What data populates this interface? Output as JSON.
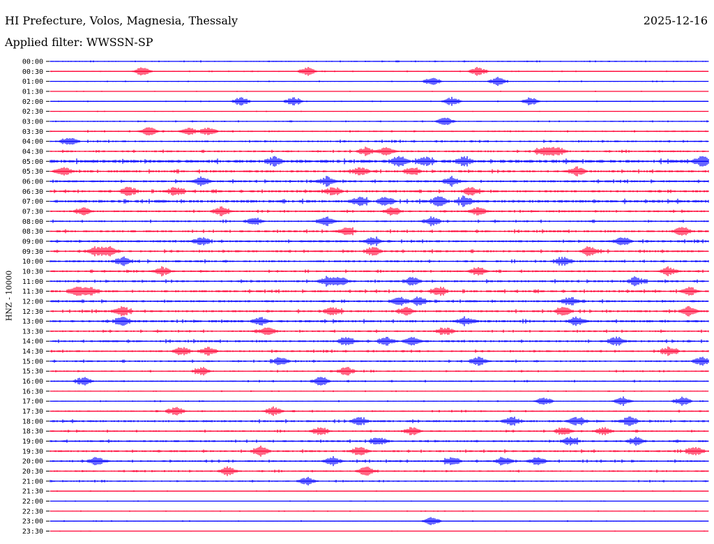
{
  "header": {
    "station": "HI Prefecture, Volos, Magnesia, Thessaly",
    "date": "2025-12-16",
    "filter": "Applied filter: WWSSN-SP"
  },
  "chart_data": {
    "type": "line",
    "ylabel": "HNZ - 10000",
    "trace_start_labels": [
      "00:00",
      "00:30",
      "01:00",
      "01:30",
      "02:00",
      "02:30",
      "03:00",
      "03:30",
      "04:00",
      "04:30",
      "05:00",
      "05:30",
      "06:00",
      "06:30",
      "07:00",
      "07:30",
      "08:00",
      "08:30",
      "09:00",
      "09:30",
      "10:00",
      "10:30",
      "11:00",
      "11:30",
      "12:00",
      "12:30",
      "13:00",
      "13:30",
      "14:00",
      "14:30",
      "15:00",
      "15:30",
      "16:00",
      "16:30",
      "17:00",
      "17:30",
      "18:00",
      "18:30",
      "19:00",
      "19:30",
      "20:00",
      "20:30",
      "21:00",
      "21:30",
      "22:00",
      "22:30",
      "23:00",
      "23:30"
    ],
    "trace_colors": [
      "#0000ff",
      "#ff0033"
    ],
    "grid": false,
    "relative_amplitude": [
      0.6,
      0.5,
      0.5,
      0.4,
      0.5,
      0.4,
      0.6,
      0.8,
      1.0,
      1.0,
      1.8,
      1.3,
      1.2,
      1.2,
      1.6,
      1.0,
      1.0,
      1.2,
      1.2,
      1.2,
      1.2,
      1.0,
      1.2,
      1.2,
      1.2,
      1.2,
      1.3,
      1.0,
      1.2,
      1.0,
      1.0,
      0.8,
      0.8,
      0.5,
      0.6,
      0.8,
      1.2,
      0.9,
      1.1,
      1.1,
      1.0,
      0.9,
      0.8,
      0.4,
      0.4,
      0.4,
      0.5,
      0.3
    ],
    "events": [
      {
        "trace": "00:30",
        "x": [
          0.14,
          0.39,
          0.65
        ]
      },
      {
        "trace": "01:00",
        "x": [
          0.58,
          0.68
        ]
      },
      {
        "trace": "02:00",
        "x": [
          0.29,
          0.37,
          0.61,
          0.73
        ]
      },
      {
        "trace": "03:00",
        "x": [
          0.6
        ]
      },
      {
        "trace": "03:30",
        "x": [
          0.15,
          0.21,
          0.24
        ]
      },
      {
        "trace": "04:00",
        "x": [
          0.03
        ]
      },
      {
        "trace": "04:30",
        "x": [
          0.48,
          0.51,
          0.75,
          0.77
        ]
      },
      {
        "trace": "05:00",
        "x": [
          0.34,
          0.53,
          0.57,
          0.63,
          0.99
        ]
      },
      {
        "trace": "05:30",
        "x": [
          0.02,
          0.47,
          0.55,
          0.8
        ]
      },
      {
        "trace": "06:00",
        "x": [
          0.23,
          0.42,
          0.61
        ]
      },
      {
        "trace": "06:30",
        "x": [
          0.12,
          0.19,
          0.43,
          0.64
        ]
      },
      {
        "trace": "07:00",
        "x": [
          0.47,
          0.51,
          0.59,
          0.63
        ]
      },
      {
        "trace": "07:30",
        "x": [
          0.05,
          0.26,
          0.52,
          0.65
        ]
      },
      {
        "trace": "08:00",
        "x": [
          0.31,
          0.42,
          0.58
        ]
      },
      {
        "trace": "08:30",
        "x": [
          0.45,
          0.96
        ]
      },
      {
        "trace": "09:00",
        "x": [
          0.23,
          0.49,
          0.87
        ]
      },
      {
        "trace": "09:30",
        "x": [
          0.07,
          0.09,
          0.49,
          0.82
        ]
      },
      {
        "trace": "10:00",
        "x": [
          0.11,
          0.78
        ]
      },
      {
        "trace": "10:30",
        "x": [
          0.17,
          0.65,
          0.94
        ]
      },
      {
        "trace": "11:00",
        "x": [
          0.42,
          0.44,
          0.55,
          0.89
        ]
      },
      {
        "trace": "11:30",
        "x": [
          0.04,
          0.06,
          0.59,
          0.97
        ]
      },
      {
        "trace": "12:00",
        "x": [
          0.53,
          0.56,
          0.79
        ]
      },
      {
        "trace": "12:30",
        "x": [
          0.11,
          0.43,
          0.54,
          0.78,
          0.97
        ]
      },
      {
        "trace": "13:00",
        "x": [
          0.11,
          0.32,
          0.63,
          0.8
        ]
      },
      {
        "trace": "13:30",
        "x": [
          0.33,
          0.6
        ]
      },
      {
        "trace": "14:00",
        "x": [
          0.45,
          0.51,
          0.55,
          0.86
        ]
      },
      {
        "trace": "14:30",
        "x": [
          0.2,
          0.24,
          0.94
        ]
      },
      {
        "trace": "15:00",
        "x": [
          0.35,
          0.65,
          0.99
        ]
      },
      {
        "trace": "15:30",
        "x": [
          0.23,
          0.45
        ]
      },
      {
        "trace": "16:00",
        "x": [
          0.05,
          0.41
        ]
      },
      {
        "trace": "17:00",
        "x": [
          0.75,
          0.87,
          0.96
        ]
      },
      {
        "trace": "17:30",
        "x": [
          0.19,
          0.34
        ]
      },
      {
        "trace": "18:00",
        "x": [
          0.47,
          0.7,
          0.8,
          0.88
        ]
      },
      {
        "trace": "18:30",
        "x": [
          0.41,
          0.55,
          0.78,
          0.84
        ]
      },
      {
        "trace": "19:00",
        "x": [
          0.5,
          0.79,
          0.89
        ]
      },
      {
        "trace": "19:30",
        "x": [
          0.32,
          0.47,
          0.98
        ]
      },
      {
        "trace": "20:00",
        "x": [
          0.07,
          0.43,
          0.61,
          0.69,
          0.74
        ]
      },
      {
        "trace": "20:30",
        "x": [
          0.27,
          0.48
        ]
      },
      {
        "trace": "21:00",
        "x": [
          0.39
        ]
      },
      {
        "trace": "23:00",
        "x": [
          0.58
        ]
      }
    ]
  }
}
